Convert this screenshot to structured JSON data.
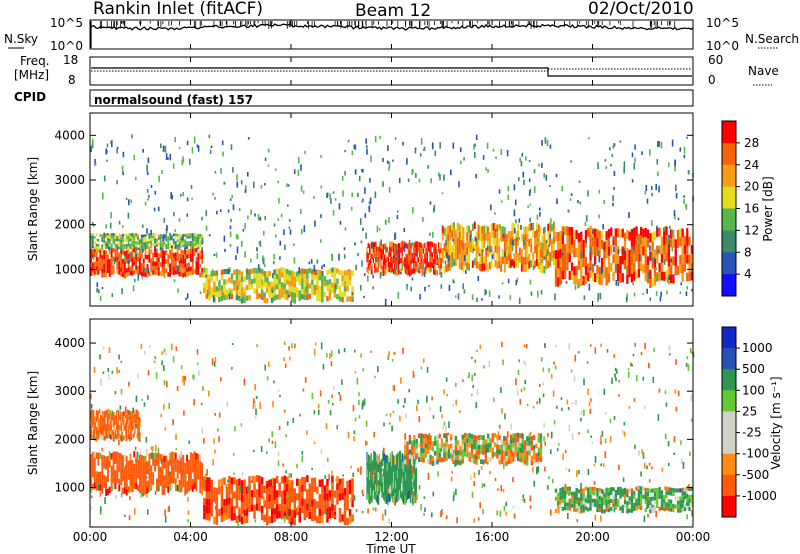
{
  "header": {
    "station": "Rankin Inlet (fitACF)",
    "beam": "Beam 12",
    "date": "02/Oct/2010"
  },
  "top_panel": {
    "left_label": "N.Sky",
    "right_label": "N.Search",
    "left_ticks": [
      "10^5",
      "10^0"
    ],
    "right_ticks": [
      "10^5",
      "10^0"
    ]
  },
  "freq_panel": {
    "left_label_1": "Freq.",
    "left_label_2": "[MHz]",
    "left_ticks": [
      "18",
      "8"
    ],
    "right_label": "Nave",
    "right_ticks": [
      "60",
      "0"
    ]
  },
  "cpid": {
    "label": "CPID",
    "text": "normalsound (fast) 157"
  },
  "colors": {
    "power": [
      "#1010ff",
      "#2855b5",
      "#3d8a6a",
      "#56b84a",
      "#e6dc1e",
      "#f59b14",
      "#f5640a",
      "#ff0000"
    ],
    "velocity": [
      "#ff0000",
      "#ff5a0a",
      "#ff8c14",
      "#d2d2c8",
      "#d2d2c8",
      "#64c832",
      "#2d9650",
      "#2850b4",
      "#1428c8"
    ]
  },
  "x_axis": {
    "label": "Time UT",
    "ticks": [
      "00:00",
      "04:00",
      "08:00",
      "12:00",
      "16:00",
      "20:00",
      "00:00"
    ]
  },
  "chart_data": [
    {
      "type": "heatmap",
      "title": "",
      "xlabel": "Time UT",
      "ylabel": "Slant Range [km]",
      "xlim": [
        0,
        24
      ],
      "ylim": [
        180,
        4500
      ],
      "yticks": [
        "1000",
        "2000",
        "3000",
        "4000"
      ],
      "colorbar_label": "Power [dB]",
      "colorbar_ticks": [
        "4",
        "8",
        "12",
        "16",
        "20",
        "24",
        "28"
      ],
      "colorbar_range": [
        0,
        32
      ],
      "bands": [
        {
          "t": [
            0,
            4.5
          ],
          "r": [
            850,
            1450
          ],
          "level": 28
        },
        {
          "t": [
            0,
            4.5
          ],
          "r": [
            1450,
            1800
          ],
          "level": 14
        },
        {
          "t": [
            4.5,
            10.5
          ],
          "r": [
            300,
            1000
          ],
          "level": 18
        },
        {
          "t": [
            11,
            14
          ],
          "r": [
            900,
            1600
          ],
          "level": 28
        },
        {
          "t": [
            14,
            18.5
          ],
          "r": [
            1000,
            2000
          ],
          "level": 22
        },
        {
          "t": [
            18.5,
            24
          ],
          "r": [
            700,
            1900
          ],
          "level": 26
        }
      ]
    },
    {
      "type": "heatmap",
      "title": "",
      "xlabel": "Time UT",
      "ylabel": "Slant Range [km]",
      "xlim": [
        0,
        24
      ],
      "ylim": [
        180,
        4500
      ],
      "yticks": [
        "1000",
        "2000",
        "3000",
        "4000"
      ],
      "colorbar_label": "Velocity [m s⁻¹]",
      "colorbar_ticks": [
        "1000",
        "500",
        "100",
        "25",
        "-25",
        "-100",
        "-500",
        "-1000"
      ],
      "colorbar_range": [
        -1000,
        1000
      ],
      "bands": [
        {
          "t": [
            0,
            4.5
          ],
          "r": [
            900,
            1700
          ],
          "level": -300
        },
        {
          "t": [
            0,
            2
          ],
          "r": [
            2000,
            2600
          ],
          "level": -200
        },
        {
          "t": [
            4.5,
            10.5
          ],
          "r": [
            300,
            1200
          ],
          "level": -400
        },
        {
          "t": [
            11,
            13
          ],
          "r": [
            700,
            1700
          ],
          "level": 300
        },
        {
          "t": [
            12.5,
            18
          ],
          "r": [
            1500,
            2100
          ],
          "level": 0
        },
        {
          "t": [
            18.5,
            24
          ],
          "r": [
            500,
            1000
          ],
          "level": 150
        }
      ]
    }
  ]
}
